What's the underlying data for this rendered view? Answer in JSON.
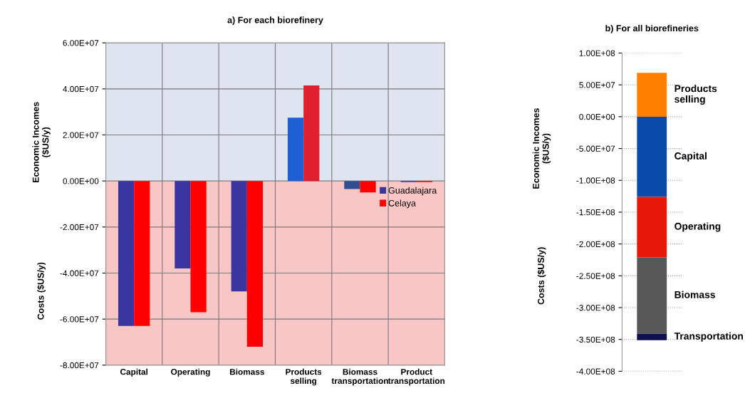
{
  "chart_data": [
    {
      "type": "bar",
      "title": "a) For each biorefinery",
      "ylabel": "Economic Incomes\n($US/y)",
      "annotations": [
        "Costs ($US/y)"
      ],
      "categories": [
        "Capital",
        "Operating",
        "Biomass",
        "Products\nselling",
        "Biomass\ntransportation",
        "Product\ntransportation"
      ],
      "series": [
        {
          "name": "Guadalajara",
          "color": "#3b35a0",
          "colors": [
            "#3b35a0",
            "#3b35a0",
            "#3b35a0",
            "#1f5fd6",
            "#2f4f8f",
            "#3b35a0"
          ],
          "values": [
            -63000000,
            -38000000,
            -48000000,
            27500000,
            -3500000,
            -500000
          ]
        },
        {
          "name": "Celaya",
          "color": "#ff0000",
          "colors": [
            "#ff0000",
            "#ff0000",
            "#ff0000",
            "#e0202e",
            "#ff0000",
            "#ff0000"
          ],
          "values": [
            -63000000,
            -57000000,
            -72000000,
            41500000,
            -5000000,
            -500000
          ]
        }
      ],
      "ylim": [
        -80000000,
        60000000
      ],
      "yticks": [
        {
          "value": -80000000,
          "label": "-8.00E+07"
        },
        {
          "value": -60000000,
          "label": "-6.00E+07"
        },
        {
          "value": -40000000,
          "label": "-4.00E+07"
        },
        {
          "value": -20000000,
          "label": "-2.00E+07"
        },
        {
          "value": 0,
          "label": "0.00E+00"
        },
        {
          "value": 20000000,
          "label": "2.00E+07"
        },
        {
          "value": 40000000,
          "label": "4.00E+07"
        },
        {
          "value": 60000000,
          "label": "6.00E+07"
        }
      ],
      "bands": [
        {
          "axis": "y",
          "from": 0,
          "to": 60000000,
          "color": "#dfe4f1"
        },
        {
          "axis": "y",
          "from": -80000000,
          "to": 0,
          "color": "#f9c6c6"
        }
      ],
      "grid": true,
      "legend": "right"
    },
    {
      "type": "bar",
      "title": "b) For all biorefineries",
      "ylabel": "Economic Incomes\n($US/y)",
      "annotations": [
        "Costs ($US/y)"
      ],
      "categories": [
        null
      ],
      "stacked": true,
      "series": [
        {
          "name": "Products\nselling",
          "color": "#ff8000",
          "values": [
            69000000
          ]
        },
        {
          "name": "Capital",
          "color": "#0a4aa8",
          "values": [
            -126000000
          ]
        },
        {
          "name": "Operating",
          "color": "#e81808",
          "values": [
            -95000000
          ]
        },
        {
          "name": "Biomass",
          "color": "#585858",
          "values": [
            -120000000
          ]
        },
        {
          "name": "Transportation",
          "color": "#101050",
          "values": [
            -10000000
          ]
        }
      ],
      "ylim": [
        -400000000,
        100000000
      ],
      "yticks": [
        {
          "value": -400000000,
          "label": "-4.00E+08"
        },
        {
          "value": -350000000,
          "label": "-3.50E+08"
        },
        {
          "value": -300000000,
          "label": "-3.00E+08"
        },
        {
          "value": -250000000,
          "label": "-2.50E+08"
        },
        {
          "value": -200000000,
          "label": "-2.00E+08"
        },
        {
          "value": -150000000,
          "label": "-1.50E+08"
        },
        {
          "value": -100000000,
          "label": "-1.00E+08"
        },
        {
          "value": -50000000,
          "label": "-5.00E+07"
        },
        {
          "value": 0,
          "label": "0.00E+00"
        },
        {
          "value": 50000000,
          "label": "5.00E+07"
        },
        {
          "value": 100000000,
          "label": "1.00E+08"
        }
      ],
      "grid": "y",
      "tick_labels": "y"
    }
  ]
}
